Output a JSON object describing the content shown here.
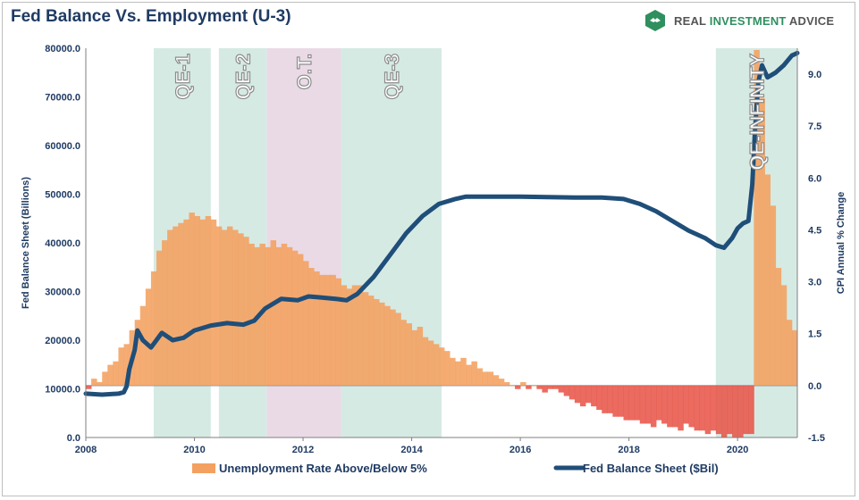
{
  "title": "Fed Balance Vs. Employment (U-3)",
  "brand": {
    "name_part1": "REAL ",
    "name_part2": "INVESTMENT",
    "name_part3": " ADVICE",
    "icon": "eagle-logo-icon"
  },
  "colors": {
    "unemployment_above": "#f4a060",
    "unemployment_below": "#e8564a",
    "fed_line": "#1f4e79",
    "qe_band": "#cfe6df",
    "ot_band": "#e6d4e2",
    "title": "#1f3b63"
  },
  "chart_data": {
    "type": "bar+line",
    "title": "Fed Balance Vs. Employment (U-3)",
    "x_axis": {
      "min": 2008.0,
      "max": 2021.1,
      "ticks": [
        "2008",
        "2010",
        "2012",
        "2014",
        "2016",
        "2018",
        "2020"
      ]
    },
    "y_left": {
      "label": "Fed Balance Sheet (Billions)",
      "min": 0,
      "max": 80000,
      "ticks": [
        "0.0",
        "10000.0",
        "20000.0",
        "30000.0",
        "40000.0",
        "50000.0",
        "60000.0",
        "70000.0",
        "80000.0"
      ]
    },
    "y_right": {
      "label": "CPI Annual % Change",
      "min": -1.5,
      "max": 9.75,
      "ticks": [
        "-1.5",
        "0.0",
        "1.5",
        "3.0",
        "4.5",
        "6.0",
        "7.5",
        "9.0"
      ]
    },
    "shaded_periods": [
      {
        "label": "QE-1",
        "start": 2009.25,
        "end": 2010.3,
        "kind": "qe"
      },
      {
        "label": "QE-2",
        "start": 2010.45,
        "end": 2011.33,
        "kind": "qe"
      },
      {
        "label": "O.T.",
        "start": 2011.33,
        "end": 2012.7,
        "kind": "ot"
      },
      {
        "label": "QE-3",
        "start": 2012.7,
        "end": 2014.55,
        "kind": "qe"
      },
      {
        "label": "QE-INFINITY",
        "start": 2019.6,
        "end": 2021.1,
        "kind": "qe"
      }
    ],
    "legend": [
      "Unemployment Rate Above/Below 5%",
      "Fed Balance Sheet ($Bil)"
    ],
    "legend_position": "bottom",
    "unemployment_bars": {
      "name": "Unemployment Rate Above/Below 5%",
      "units": "right-axis",
      "points": [
        [
          2008.0,
          -0.1
        ],
        [
          2008.1,
          0.2
        ],
        [
          2008.2,
          0.1
        ],
        [
          2008.3,
          0.4
        ],
        [
          2008.4,
          0.6
        ],
        [
          2008.5,
          0.7
        ],
        [
          2008.6,
          1.1
        ],
        [
          2008.7,
          1.2
        ],
        [
          2008.8,
          1.6
        ],
        [
          2008.9,
          1.9
        ],
        [
          2009.0,
          2.3
        ],
        [
          2009.1,
          2.8
        ],
        [
          2009.2,
          3.3
        ],
        [
          2009.3,
          3.9
        ],
        [
          2009.4,
          4.2
        ],
        [
          2009.5,
          4.5
        ],
        [
          2009.6,
          4.6
        ],
        [
          2009.7,
          4.7
        ],
        [
          2009.8,
          4.8
        ],
        [
          2009.9,
          5.0
        ],
        [
          2010.0,
          4.9
        ],
        [
          2010.1,
          4.8
        ],
        [
          2010.2,
          4.9
        ],
        [
          2010.3,
          4.8
        ],
        [
          2010.4,
          4.6
        ],
        [
          2010.5,
          4.5
        ],
        [
          2010.6,
          4.6
        ],
        [
          2010.7,
          4.5
        ],
        [
          2010.8,
          4.4
        ],
        [
          2010.9,
          4.3
        ],
        [
          2011.0,
          4.1
        ],
        [
          2011.1,
          4.0
        ],
        [
          2011.2,
          4.1
        ],
        [
          2011.3,
          4.0
        ],
        [
          2011.4,
          4.2
        ],
        [
          2011.5,
          4.0
        ],
        [
          2011.6,
          4.1
        ],
        [
          2011.7,
          4.0
        ],
        [
          2011.8,
          3.9
        ],
        [
          2011.9,
          3.8
        ],
        [
          2012.0,
          3.6
        ],
        [
          2012.1,
          3.4
        ],
        [
          2012.2,
          3.3
        ],
        [
          2012.3,
          3.2
        ],
        [
          2012.4,
          3.2
        ],
        [
          2012.5,
          3.2
        ],
        [
          2012.6,
          3.1
        ],
        [
          2012.7,
          2.9
        ],
        [
          2012.8,
          2.8
        ],
        [
          2012.9,
          2.9
        ],
        [
          2013.0,
          2.9
        ],
        [
          2013.1,
          2.7
        ],
        [
          2013.2,
          2.6
        ],
        [
          2013.3,
          2.5
        ],
        [
          2013.4,
          2.4
        ],
        [
          2013.5,
          2.3
        ],
        [
          2013.6,
          2.2
        ],
        [
          2013.7,
          2.1
        ],
        [
          2013.8,
          1.9
        ],
        [
          2013.9,
          1.8
        ],
        [
          2014.0,
          1.6
        ],
        [
          2014.1,
          1.7
        ],
        [
          2014.2,
          1.4
        ],
        [
          2014.3,
          1.3
        ],
        [
          2014.4,
          1.2
        ],
        [
          2014.5,
          1.1
        ],
        [
          2014.6,
          1.0
        ],
        [
          2014.7,
          0.8
        ],
        [
          2014.8,
          0.7
        ],
        [
          2014.9,
          0.8
        ],
        [
          2015.0,
          0.6
        ],
        [
          2015.1,
          0.7
        ],
        [
          2015.2,
          0.5
        ],
        [
          2015.3,
          0.4
        ],
        [
          2015.4,
          0.4
        ],
        [
          2015.5,
          0.3
        ],
        [
          2015.6,
          0.2
        ],
        [
          2015.7,
          0.1
        ],
        [
          2015.8,
          0.0
        ],
        [
          2015.9,
          -0.1
        ],
        [
          2016.0,
          0.1
        ],
        [
          2016.1,
          -0.1
        ],
        [
          2016.2,
          0.0
        ],
        [
          2016.3,
          -0.1
        ],
        [
          2016.4,
          -0.2
        ],
        [
          2016.5,
          -0.1
        ],
        [
          2016.6,
          -0.1
        ],
        [
          2016.7,
          -0.2
        ],
        [
          2016.8,
          -0.3
        ],
        [
          2016.9,
          -0.4
        ],
        [
          2017.0,
          -0.5
        ],
        [
          2017.1,
          -0.6
        ],
        [
          2017.2,
          -0.5
        ],
        [
          2017.3,
          -0.6
        ],
        [
          2017.4,
          -0.7
        ],
        [
          2017.5,
          -0.8
        ],
        [
          2017.6,
          -0.8
        ],
        [
          2017.7,
          -0.9
        ],
        [
          2017.8,
          -0.9
        ],
        [
          2017.9,
          -1.0
        ],
        [
          2018.0,
          -1.0
        ],
        [
          2018.1,
          -1.0
        ],
        [
          2018.2,
          -1.1
        ],
        [
          2018.3,
          -1.1
        ],
        [
          2018.4,
          -1.2
        ],
        [
          2018.5,
          -1.0
        ],
        [
          2018.6,
          -1.1
        ],
        [
          2018.7,
          -1.2
        ],
        [
          2018.8,
          -1.2
        ],
        [
          2018.9,
          -1.3
        ],
        [
          2019.0,
          -1.1
        ],
        [
          2019.1,
          -1.2
        ],
        [
          2019.2,
          -1.3
        ],
        [
          2019.3,
          -1.3
        ],
        [
          2019.4,
          -1.4
        ],
        [
          2019.5,
          -1.3
        ],
        [
          2019.6,
          -1.4
        ],
        [
          2019.7,
          -1.5
        ],
        [
          2019.8,
          -1.4
        ],
        [
          2019.9,
          -1.5
        ],
        [
          2020.0,
          -1.5
        ],
        [
          2020.1,
          -1.4
        ],
        [
          2020.2,
          -1.4
        ],
        [
          2020.3,
          9.7
        ],
        [
          2020.4,
          8.3
        ],
        [
          2020.5,
          6.1
        ],
        [
          2020.6,
          5.2
        ],
        [
          2020.7,
          3.4
        ],
        [
          2020.8,
          2.9
        ],
        [
          2020.9,
          1.9
        ],
        [
          2021.0,
          1.6
        ]
      ]
    },
    "fed_balance_line": {
      "name": "Fed Balance Sheet ($Bil)",
      "units": "left-axis",
      "points": [
        [
          2008.0,
          9000
        ],
        [
          2008.3,
          8800
        ],
        [
          2008.6,
          9000
        ],
        [
          2008.7,
          9300
        ],
        [
          2008.75,
          10500
        ],
        [
          2008.8,
          14000
        ],
        [
          2008.9,
          18000
        ],
        [
          2008.95,
          22000
        ],
        [
          2009.05,
          20000
        ],
        [
          2009.2,
          18500
        ],
        [
          2009.4,
          21500
        ],
        [
          2009.6,
          20000
        ],
        [
          2009.8,
          20500
        ],
        [
          2010.0,
          22000
        ],
        [
          2010.3,
          23000
        ],
        [
          2010.6,
          23500
        ],
        [
          2010.9,
          23200
        ],
        [
          2011.1,
          24000
        ],
        [
          2011.3,
          26500
        ],
        [
          2011.6,
          28500
        ],
        [
          2011.9,
          28200
        ],
        [
          2012.1,
          29000
        ],
        [
          2012.3,
          28800
        ],
        [
          2012.6,
          28500
        ],
        [
          2012.8,
          28200
        ],
        [
          2013.0,
          29500
        ],
        [
          2013.3,
          33000
        ],
        [
          2013.6,
          37500
        ],
        [
          2013.9,
          42000
        ],
        [
          2014.2,
          45500
        ],
        [
          2014.5,
          48000
        ],
        [
          2014.8,
          49000
        ],
        [
          2015.0,
          49500
        ],
        [
          2015.5,
          49500
        ],
        [
          2016.0,
          49500
        ],
        [
          2016.5,
          49400
        ],
        [
          2017.0,
          49300
        ],
        [
          2017.5,
          49300
        ],
        [
          2017.9,
          49000
        ],
        [
          2018.2,
          48000
        ],
        [
          2018.5,
          46500
        ],
        [
          2018.8,
          44500
        ],
        [
          2019.1,
          42500
        ],
        [
          2019.4,
          41000
        ],
        [
          2019.6,
          39500
        ],
        [
          2019.75,
          39000
        ],
        [
          2019.9,
          41000
        ],
        [
          2020.0,
          43000
        ],
        [
          2020.1,
          44000
        ],
        [
          2020.2,
          44500
        ],
        [
          2020.27,
          52000
        ],
        [
          2020.32,
          63000
        ],
        [
          2020.38,
          73000
        ],
        [
          2020.45,
          76500
        ],
        [
          2020.55,
          74000
        ],
        [
          2020.7,
          75000
        ],
        [
          2020.85,
          76500
        ],
        [
          2021.0,
          78500
        ],
        [
          2021.1,
          79000
        ]
      ]
    }
  }
}
